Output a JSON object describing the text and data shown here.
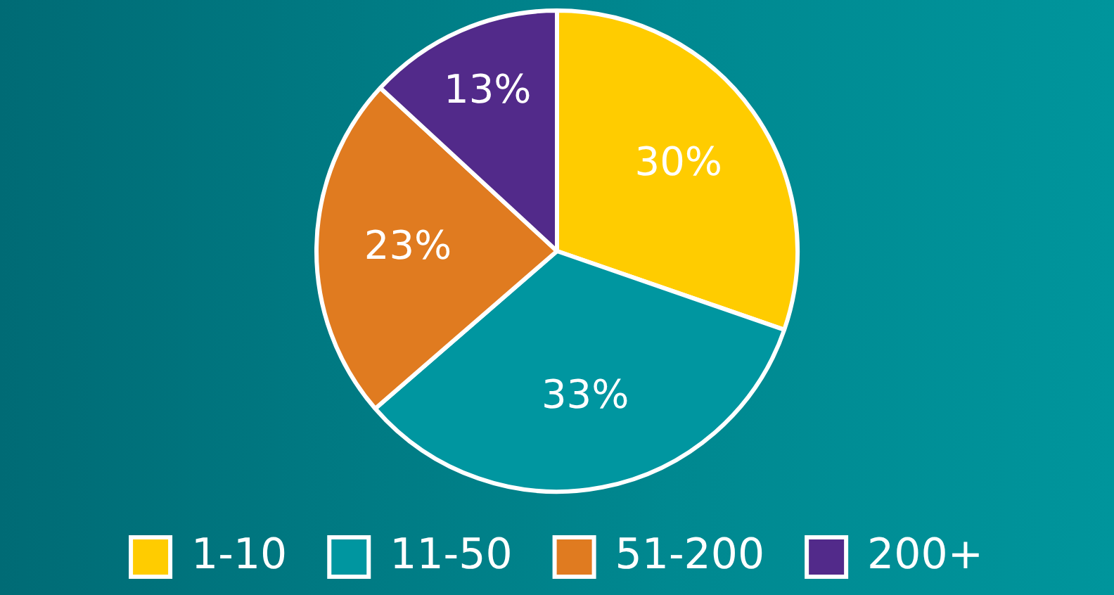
{
  "chart_data": {
    "type": "pie",
    "categories": [
      "1-10",
      "11-50",
      "51-200",
      "200+"
    ],
    "values": [
      30,
      33,
      23,
      13
    ],
    "colors": [
      "#ffcc00",
      "#0096a0",
      "#e07b20",
      "#522a8a"
    ],
    "value_labels": [
      "30%",
      "33%",
      "23%",
      "13%"
    ],
    "legend": "bottom"
  }
}
